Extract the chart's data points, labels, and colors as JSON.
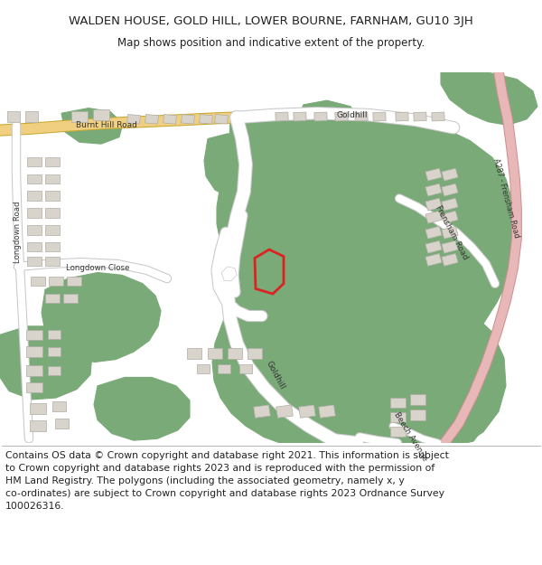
{
  "title": "WALDEN HOUSE, GOLD HILL, LOWER BOURNE, FARNHAM, GU10 3JH",
  "subtitle": "Map shows position and indicative extent of the property.",
  "footer": "Contains OS data © Crown copyright and database right 2021. This information is subject\nto Crown copyright and database rights 2023 and is reproduced with the permission of\nHM Land Registry. The polygons (including the associated geometry, namely x, y\nco-ordinates) are subject to Crown copyright and database rights 2023 Ordnance Survey\n100026316.",
  "map_bg": "#f2efea",
  "green": "#7aaa78",
  "white_road": "#ffffff",
  "road_edge": "#c8c8c8",
  "yellow_road": "#f0d080",
  "yellow_edge": "#c8a830",
  "pink_road": "#e8b8b8",
  "pink_edge": "#d09090",
  "building": "#d8d4cc",
  "building_edge": "#b0aca4",
  "red_plot": "#dd2222",
  "text_dark": "#222222",
  "label_color": "#444444"
}
